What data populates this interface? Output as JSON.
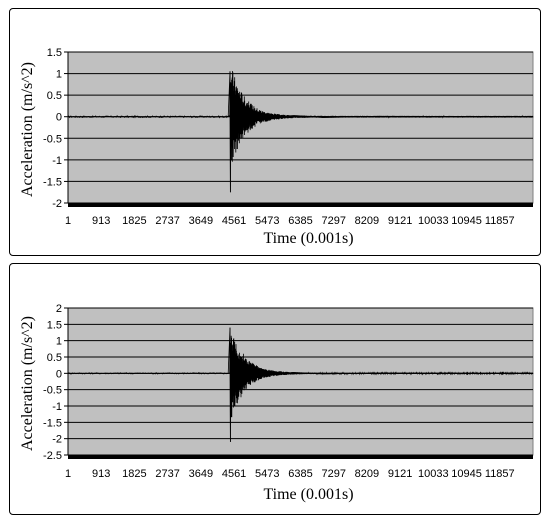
{
  "chart_data": [
    {
      "type": "line",
      "title": "",
      "xlabel": "Time  (0.001s)",
      "ylabel": "Acceleration (m/s^2)",
      "ylim": [
        -2,
        1.5
      ],
      "yticks": [
        1.5,
        1,
        0.5,
        0,
        -0.5,
        -1,
        -1.5,
        -2
      ],
      "ytick_labels": [
        "1.5",
        "1",
        "0.5",
        "0",
        "-0.5",
        "-1",
        "-1.5",
        "-2"
      ],
      "xlim": [
        1,
        12769
      ],
      "xticks": [
        1,
        913,
        1825,
        2737,
        3649,
        4561,
        5473,
        6385,
        7297,
        8209,
        9121,
        10033,
        10945,
        11857
      ],
      "xtick_labels": [
        "1",
        "913",
        "1825",
        "2737",
        "3649",
        "4561",
        "5473",
        "6385",
        "7297",
        "8209",
        "9121",
        "10033",
        "10945",
        "11857"
      ],
      "grid": "horizontal",
      "plot_bg": "#c0c0c0",
      "line_color": "#000000",
      "series": [
        {
          "x": [
            1,
            4000,
            4400,
            4450,
            4460,
            4470,
            4480,
            4500,
            4520,
            4550,
            4600,
            4700,
            4900,
            5200,
            5600,
            6200,
            7000,
            8500,
            12769
          ],
          "values": [
            0,
            0,
            0,
            1.05,
            -1.75,
            0.8,
            -0.65,
            0.55,
            -0.5,
            0.4,
            -0.3,
            0.2,
            -0.1,
            0.07,
            -0.05,
            0.03,
            -0.02,
            0.01,
            0
          ]
        }
      ]
    },
    {
      "type": "line",
      "title": "",
      "xlabel": "Time  (0.001s)",
      "ylabel": "Acceleration (m/s^2)",
      "ylim": [
        -2.5,
        2
      ],
      "yticks": [
        2,
        1.5,
        1,
        0.5,
        0,
        -0.5,
        -1,
        -1.5,
        -2,
        -2.5
      ],
      "ytick_labels": [
        "2",
        "1.5",
        "1",
        "0.5",
        "0",
        "-0.5",
        "-1",
        "-1.5",
        "-2",
        "-2.5"
      ],
      "xlim": [
        1,
        12769
      ],
      "xticks": [
        1,
        913,
        1825,
        2737,
        3649,
        4561,
        5473,
        6385,
        7297,
        8209,
        9121,
        10033,
        10945,
        11857
      ],
      "xtick_labels": [
        "1",
        "913",
        "1825",
        "2737",
        "3649",
        "4561",
        "5473",
        "6385",
        "7297",
        "8209",
        "9121",
        "10033",
        "10945",
        "11857"
      ],
      "grid": "horizontal",
      "plot_bg": "#c0c0c0",
      "line_color": "#000000",
      "series": [
        {
          "x": [
            1,
            4000,
            4400,
            4450,
            4460,
            4470,
            4480,
            4500,
            4520,
            4550,
            4600,
            4700,
            4900,
            5200,
            5600,
            6200,
            7000,
            8500,
            12769
          ],
          "values": [
            0,
            0,
            0,
            1.4,
            -2.1,
            0.85,
            -0.7,
            0.55,
            -0.5,
            0.4,
            -0.3,
            0.2,
            -0.12,
            0.08,
            -0.05,
            0.03,
            -0.02,
            0.01,
            0
          ]
        }
      ]
    }
  ]
}
